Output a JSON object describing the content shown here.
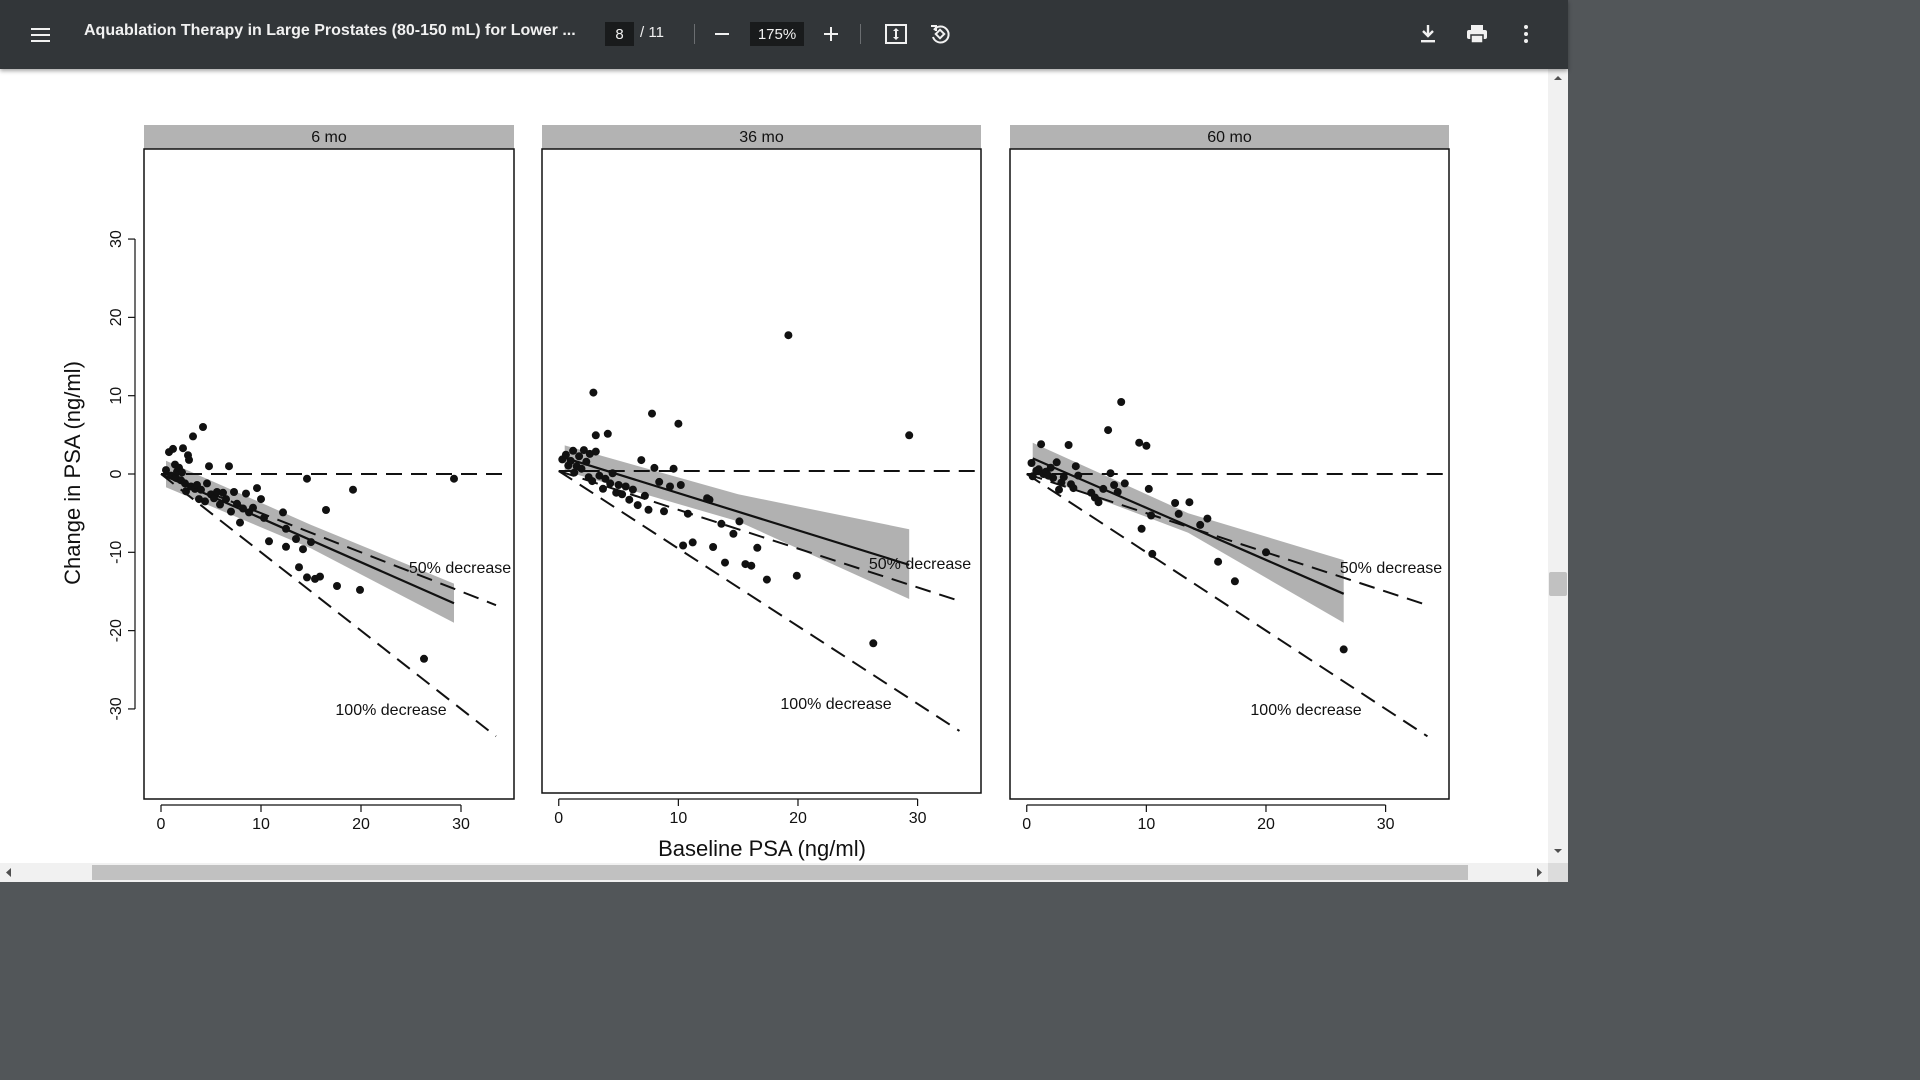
{
  "toolbar": {
    "title": "Aquablation Therapy in Large Prostates (80-150 mL) for Lower ...",
    "page_current": "8",
    "page_total": "/ 11",
    "zoom": "175%",
    "icons": [
      "menu-icon",
      "minus-icon",
      "plus-icon",
      "fit-page-icon",
      "rotate-icon",
      "download-icon",
      "print-icon",
      "more-vert-icon"
    ]
  },
  "chart_data": {
    "type": "scatter",
    "ylabel": "Change in PSA (ng/ml)",
    "xlabel": "Baseline PSA (ng/ml)",
    "panels": [
      {
        "title": "6 mo",
        "xlim": [
          -1.7,
          35.3
        ],
        "ylim": [
          -41.5,
          41.5
        ],
        "xticks": [
          0,
          10,
          20,
          30
        ],
        "yticks": [
          -30,
          -20,
          -10,
          0,
          10,
          20,
          30
        ],
        "annotations": [
          "50% decrease",
          "100% decrease"
        ],
        "fit_line": [
          [
            0.5,
            -0.3
          ],
          [
            29.3,
            -16.5
          ]
        ],
        "ci_band_upper": [
          [
            0.5,
            1.7
          ],
          [
            15,
            -6.5
          ],
          [
            29.3,
            -14.0
          ]
        ],
        "ci_band_lower": [
          [
            0.5,
            -1.7
          ],
          [
            15,
            -9.5
          ],
          [
            29.3,
            -19.0
          ]
        ],
        "points": [
          [
            0.5,
            0.5
          ],
          [
            0.8,
            2.8
          ],
          [
            1.0,
            -0.2
          ],
          [
            1.2,
            3.2
          ],
          [
            1.4,
            1.2
          ],
          [
            1.5,
            -0.5
          ],
          [
            1.6,
            0.3
          ],
          [
            1.8,
            0.8
          ],
          [
            2.0,
            -0.8
          ],
          [
            2.1,
            0.2
          ],
          [
            2.2,
            3.3
          ],
          [
            2.4,
            -1.2
          ],
          [
            2.5,
            -2.2
          ],
          [
            2.7,
            2.4
          ],
          [
            2.8,
            1.8
          ],
          [
            3.0,
            -1.6
          ],
          [
            3.2,
            4.8
          ],
          [
            3.4,
            -1.9
          ],
          [
            3.6,
            -1.4
          ],
          [
            3.8,
            -3.2
          ],
          [
            4.0,
            -2.0
          ],
          [
            4.2,
            6.0
          ],
          [
            4.4,
            -3.5
          ],
          [
            4.6,
            -1.2
          ],
          [
            4.8,
            1.0
          ],
          [
            5.0,
            -2.6
          ],
          [
            5.3,
            -3.1
          ],
          [
            5.6,
            -2.3
          ],
          [
            5.9,
            -3.9
          ],
          [
            6.2,
            -2.4
          ],
          [
            6.5,
            -3.2
          ],
          [
            6.8,
            1.0
          ],
          [
            7.0,
            -4.8
          ],
          [
            7.3,
            -2.3
          ],
          [
            7.6,
            -3.8
          ],
          [
            7.9,
            -6.2
          ],
          [
            8.2,
            -4.4
          ],
          [
            8.5,
            -2.5
          ],
          [
            8.8,
            -4.9
          ],
          [
            9.2,
            -4.3
          ],
          [
            9.6,
            -1.8
          ],
          [
            10.0,
            -3.2
          ],
          [
            10.3,
            -5.6
          ],
          [
            10.8,
            -8.6
          ],
          [
            12.2,
            -4.9
          ],
          [
            12.5,
            -7.0
          ],
          [
            12.5,
            -9.3
          ],
          [
            13.5,
            -8.3
          ],
          [
            13.8,
            -11.9
          ],
          [
            14.2,
            -9.6
          ],
          [
            14.6,
            -13.2
          ],
          [
            15.0,
            -8.7
          ],
          [
            15.4,
            -13.4
          ],
          [
            15.9,
            -13.1
          ],
          [
            14.6,
            -0.6
          ],
          [
            16.5,
            -4.6
          ],
          [
            17.6,
            -14.3
          ],
          [
            19.2,
            -2.0
          ],
          [
            19.9,
            -14.8
          ],
          [
            26.3,
            -23.6
          ],
          [
            29.3,
            -0.6
          ]
        ]
      },
      {
        "title": "36 mo",
        "xlim": [
          -1.4,
          35.3
        ],
        "ylim": [
          -41.5,
          41.5
        ],
        "xticks": [
          0,
          10,
          20,
          30
        ],
        "yticks": [],
        "annotations": [
          "50% decrease",
          "100% decrease"
        ],
        "fit_line": [
          [
            0.5,
            1.7
          ],
          [
            29.3,
            -12.1
          ]
        ],
        "ci_band_upper": [
          [
            0.5,
            3.3
          ],
          [
            15,
            -3.0
          ],
          [
            29.3,
            -7.5
          ]
        ],
        "ci_band_lower": [
          [
            0.5,
            0.0
          ],
          [
            15,
            -6.5
          ],
          [
            29.3,
            -16.5
          ]
        ],
        "points": [
          [
            0.3,
            1.5
          ],
          [
            0.6,
            2.1
          ],
          [
            0.8,
            0.7
          ],
          [
            1.0,
            1.3
          ],
          [
            1.2,
            2.6
          ],
          [
            1.3,
            -0.2
          ],
          [
            1.5,
            0.6
          ],
          [
            1.7,
            1.9
          ],
          [
            1.9,
            0.3
          ],
          [
            2.1,
            2.7
          ],
          [
            2.3,
            1.2
          ],
          [
            2.5,
            -0.8
          ],
          [
            2.6,
            2.2
          ],
          [
            2.8,
            -1.3
          ],
          [
            2.9,
            10.1
          ],
          [
            3.1,
            2.5
          ],
          [
            3.1,
            4.6
          ],
          [
            3.4,
            -0.6
          ],
          [
            3.7,
            -2.3
          ],
          [
            3.9,
            -1.0
          ],
          [
            4.1,
            4.8
          ],
          [
            4.3,
            -1.6
          ],
          [
            4.5,
            -0.3
          ],
          [
            4.8,
            -2.8
          ],
          [
            5.0,
            -1.8
          ],
          [
            5.3,
            -3.0
          ],
          [
            5.6,
            -2.0
          ],
          [
            5.9,
            -3.7
          ],
          [
            6.2,
            -2.4
          ],
          [
            6.6,
            -4.4
          ],
          [
            6.9,
            1.4
          ],
          [
            7.2,
            -3.2
          ],
          [
            7.5,
            -5.0
          ],
          [
            7.8,
            7.4
          ],
          [
            8.0,
            0.4
          ],
          [
            8.4,
            -1.4
          ],
          [
            8.8,
            -5.2
          ],
          [
            9.3,
            -2.0
          ],
          [
            9.6,
            0.3
          ],
          [
            10.0,
            6.1
          ],
          [
            10.2,
            -1.8
          ],
          [
            10.4,
            -9.6
          ],
          [
            10.8,
            -5.5
          ],
          [
            11.2,
            -9.2
          ],
          [
            12.4,
            -3.5
          ],
          [
            12.6,
            -3.7
          ],
          [
            12.9,
            -9.8
          ],
          [
            13.6,
            -6.8
          ],
          [
            13.9,
            -11.8
          ],
          [
            14.6,
            -8.1
          ],
          [
            15.1,
            -6.5
          ],
          [
            15.6,
            -12.0
          ],
          [
            16.1,
            -12.2
          ],
          [
            16.6,
            -9.9
          ],
          [
            17.4,
            -14.0
          ],
          [
            19.2,
            17.5
          ],
          [
            19.9,
            -13.5
          ],
          [
            26.3,
            -22.2
          ],
          [
            29.3,
            4.6
          ]
        ]
      },
      {
        "title": "60 mo",
        "xlim": [
          -1.4,
          35.3
        ],
        "ylim": [
          -41.5,
          41.5
        ],
        "xticks": [
          0,
          10,
          20,
          30
        ],
        "yticks": [],
        "annotations": [
          "50% decrease",
          "100% decrease"
        ],
        "fit_line": [
          [
            0.5,
            2.0
          ],
          [
            26.5,
            -15.3
          ]
        ],
        "ci_band_upper": [
          [
            0.5,
            4.0
          ],
          [
            13.5,
            -5.0
          ],
          [
            26.5,
            -11.0
          ]
        ],
        "ci_band_lower": [
          [
            0.5,
            0.0
          ],
          [
            13.5,
            -7.5
          ],
          [
            26.5,
            -19.0
          ]
        ],
        "points": [
          [
            0.4,
            1.4
          ],
          [
            0.5,
            -0.3
          ],
          [
            0.8,
            0.4
          ],
          [
            1.0,
            0.6
          ],
          [
            1.2,
            3.8
          ],
          [
            1.4,
            0.0
          ],
          [
            1.6,
            0.3
          ],
          [
            1.8,
            -0.2
          ],
          [
            2.0,
            0.8
          ],
          [
            2.2,
            -0.5
          ],
          [
            2.5,
            1.5
          ],
          [
            2.7,
            -2.0
          ],
          [
            2.9,
            -1.1
          ],
          [
            3.1,
            -0.4
          ],
          [
            3.5,
            3.7
          ],
          [
            3.7,
            -1.3
          ],
          [
            3.9,
            -1.8
          ],
          [
            4.1,
            1.0
          ],
          [
            4.3,
            -0.2
          ],
          [
            5.4,
            -2.4
          ],
          [
            5.7,
            -3.0
          ],
          [
            6.0,
            -3.6
          ],
          [
            6.4,
            -1.9
          ],
          [
            6.8,
            5.6
          ],
          [
            7.0,
            0.1
          ],
          [
            7.3,
            -1.4
          ],
          [
            7.6,
            -2.3
          ],
          [
            7.9,
            9.2
          ],
          [
            8.2,
            -1.2
          ],
          [
            9.4,
            4.0
          ],
          [
            9.6,
            -7.0
          ],
          [
            10.0,
            3.6
          ],
          [
            10.2,
            -1.9
          ],
          [
            10.4,
            -5.3
          ],
          [
            10.5,
            -10.2
          ],
          [
            12.4,
            -3.7
          ],
          [
            12.7,
            -5.1
          ],
          [
            13.6,
            -3.6
          ],
          [
            14.5,
            -6.5
          ],
          [
            15.1,
            -5.7
          ],
          [
            16.0,
            -11.2
          ],
          [
            17.4,
            -13.7
          ],
          [
            20.0,
            -10.0
          ],
          [
            26.5,
            -22.4
          ]
        ]
      }
    ]
  }
}
